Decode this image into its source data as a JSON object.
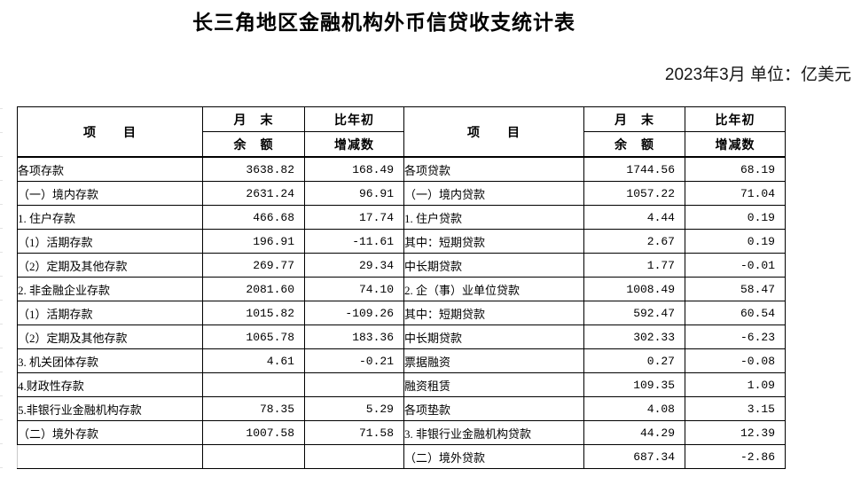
{
  "page": {
    "title": "长三角地区金融机构外币信贷收支统计表",
    "date_unit": "2023年3月  单位：亿美元"
  },
  "table": {
    "header": {
      "item": "项　　目",
      "month_end": "月　末",
      "balance": "余　额",
      "vs_year_start": "比年初",
      "change": "增减数"
    },
    "rows": [
      {
        "left": {
          "label": "各项存款",
          "indent": 0,
          "balance": "3638.82",
          "change": "168.49"
        },
        "right": {
          "label": "各项贷款",
          "indent": 0,
          "balance": "1744.56",
          "change": "68.19"
        }
      },
      {
        "left": {
          "label": "（一）境内存款",
          "indent": 0,
          "balance": "2631.24",
          "change": "96.91"
        },
        "right": {
          "label": "（一）境内贷款",
          "indent": 0,
          "balance": "1057.22",
          "change": "71.04"
        }
      },
      {
        "left": {
          "label": "1. 住户存款",
          "indent": 1,
          "balance": "466.68",
          "change": "17.74"
        },
        "right": {
          "label": "1. 住户贷款",
          "indent": 1,
          "balance": "4.44",
          "change": "0.19"
        }
      },
      {
        "left": {
          "label": "（1）活期存款",
          "indent": 2,
          "balance": "196.91",
          "change": "-11.61"
        },
        "right": {
          "label": "其中：短期贷款",
          "indent": 2,
          "balance": "2.67",
          "change": "0.19"
        }
      },
      {
        "left": {
          "label": "（2）定期及其他存款",
          "indent": 2,
          "balance": "269.77",
          "change": "29.34"
        },
        "right": {
          "label": "中长期贷款",
          "indent": 3,
          "balance": "1.77",
          "change": "-0.01"
        }
      },
      {
        "left": {
          "label": "2. 非金融企业存款",
          "indent": 1,
          "balance": "2081.60",
          "change": "74.10"
        },
        "right": {
          "label": "2. 企（事）业单位贷款",
          "indent": 1,
          "balance": "1008.49",
          "change": "58.47"
        }
      },
      {
        "left": {
          "label": "（1）活期存款",
          "indent": 2,
          "balance": "1015.82",
          "change": "-109.26"
        },
        "right": {
          "label": "其中：短期贷款",
          "indent": 2,
          "balance": "592.47",
          "change": "60.54"
        }
      },
      {
        "left": {
          "label": "（2）定期及其他存款",
          "indent": 2,
          "balance": "1065.78",
          "change": "183.36"
        },
        "right": {
          "label": "中长期贷款",
          "indent": 3,
          "balance": "302.33",
          "change": "-6.23"
        }
      },
      {
        "left": {
          "label": "3. 机关团体存款",
          "indent": 1,
          "balance": "4.61",
          "change": "-0.21"
        },
        "right": {
          "label": "票据融资",
          "indent": 3,
          "balance": "0.27",
          "change": "-0.08"
        }
      },
      {
        "left": {
          "label": "4.财政性存款",
          "indent": 1,
          "balance": "",
          "change": ""
        },
        "right": {
          "label": "融资租赁",
          "indent": 3,
          "balance": "109.35",
          "change": "1.09"
        }
      },
      {
        "left": {
          "label": "5.非银行业金融机构存款",
          "indent": 1,
          "balance": "78.35",
          "change": "5.29"
        },
        "right": {
          "label": "各项垫款",
          "indent": 3,
          "balance": "4.08",
          "change": "3.15"
        }
      },
      {
        "left": {
          "label": "（二）境外存款",
          "indent": 0,
          "balance": "1007.58",
          "change": "71.58"
        },
        "right": {
          "label": "3. 非银行业金融机构贷款",
          "indent": 1,
          "balance": "44.29",
          "change": "12.39"
        }
      },
      {
        "left": {
          "label": "",
          "indent": 0,
          "balance": "",
          "change": "",
          "faint": true
        },
        "right": {
          "label": "（二）境外贷款",
          "indent": 0,
          "balance": "687.34",
          "change": "-2.86"
        }
      }
    ]
  }
}
